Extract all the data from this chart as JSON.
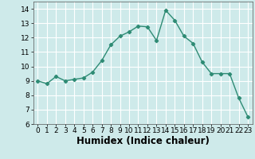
{
  "x": [
    0,
    1,
    2,
    3,
    4,
    5,
    6,
    7,
    8,
    9,
    10,
    11,
    12,
    13,
    14,
    15,
    16,
    17,
    18,
    19,
    20,
    21,
    22,
    23
  ],
  "y": [
    9.0,
    8.8,
    9.3,
    9.0,
    9.1,
    9.2,
    9.6,
    10.4,
    11.5,
    12.1,
    12.4,
    12.8,
    12.75,
    11.8,
    13.9,
    13.2,
    12.1,
    11.6,
    10.3,
    9.5,
    9.5,
    9.5,
    7.8,
    6.5
  ],
  "line_color": "#2e8b74",
  "marker": "D",
  "marker_size": 2.2,
  "xlabel": "Humidex (Indice chaleur)",
  "xlim": [
    -0.5,
    23.5
  ],
  "ylim": [
    6,
    14.5
  ],
  "yticks": [
    6,
    7,
    8,
    9,
    10,
    11,
    12,
    13,
    14
  ],
  "xticks": [
    0,
    1,
    2,
    3,
    4,
    5,
    6,
    7,
    8,
    9,
    10,
    11,
    12,
    13,
    14,
    15,
    16,
    17,
    18,
    19,
    20,
    21,
    22,
    23
  ],
  "background_color": "#ceeaea",
  "grid_color": "#ffffff",
  "tick_fontsize": 6.5,
  "label_fontsize": 8.5
}
